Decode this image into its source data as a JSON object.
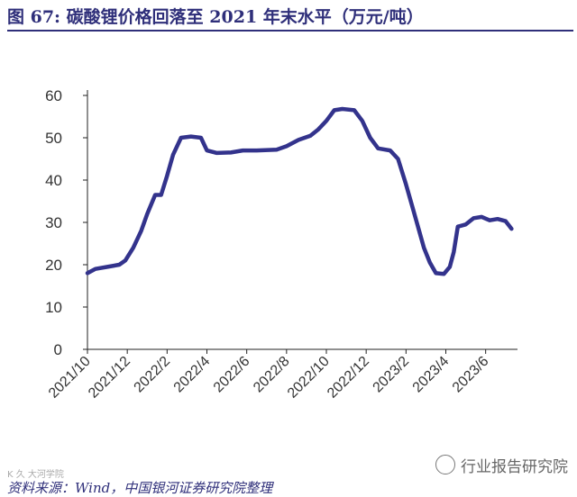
{
  "figure": {
    "title": "图 67: 碳酸锂价格回落至 2021 年末水平（万元/吨）",
    "source": "资料来源：Wind，中国银河证券研究院整理",
    "watermark": "行业报告研究院",
    "small_credit": "K 久 大河学院"
  },
  "colors": {
    "line": "#33338c",
    "title": "#2f2f7a",
    "axis": "#222222"
  },
  "chart_data": {
    "type": "line",
    "title": "",
    "xlabel": "",
    "ylabel": "",
    "ylim": [
      0,
      60
    ],
    "yticks": [
      0,
      10,
      20,
      30,
      40,
      50,
      60
    ],
    "xlim": [
      0,
      21.6
    ],
    "xticks": [
      {
        "x": 0,
        "label": "2021/10"
      },
      {
        "x": 2,
        "label": "2021/12"
      },
      {
        "x": 4,
        "label": "2022/2"
      },
      {
        "x": 6,
        "label": "2022/4"
      },
      {
        "x": 8,
        "label": "2022/6"
      },
      {
        "x": 10,
        "label": "2022/8"
      },
      {
        "x": 12,
        "label": "2022/10"
      },
      {
        "x": 14,
        "label": "2022/12"
      },
      {
        "x": 16,
        "label": "2023/2"
      },
      {
        "x": 18,
        "label": "2023/4"
      },
      {
        "x": 20,
        "label": "2023/6"
      }
    ],
    "grid": false,
    "series": [
      {
        "points": [
          [
            0,
            18
          ],
          [
            0.4,
            19
          ],
          [
            1.0,
            19.5
          ],
          [
            1.6,
            20
          ],
          [
            1.9,
            21
          ],
          [
            2.3,
            24
          ],
          [
            2.7,
            28
          ],
          [
            3.0,
            32
          ],
          [
            3.4,
            36.5
          ],
          [
            3.7,
            36.5
          ],
          [
            4.0,
            41
          ],
          [
            4.3,
            46
          ],
          [
            4.7,
            50
          ],
          [
            5.2,
            50.3
          ],
          [
            5.7,
            50
          ],
          [
            6.0,
            47
          ],
          [
            6.5,
            46.4
          ],
          [
            7.2,
            46.5
          ],
          [
            7.8,
            47
          ],
          [
            8.5,
            47
          ],
          [
            9.5,
            47.2
          ],
          [
            10.0,
            48
          ],
          [
            10.6,
            49.5
          ],
          [
            11.2,
            50.5
          ],
          [
            11.6,
            52
          ],
          [
            12.0,
            54
          ],
          [
            12.4,
            56.5
          ],
          [
            12.8,
            56.8
          ],
          [
            13.4,
            56.5
          ],
          [
            13.8,
            54
          ],
          [
            14.2,
            50
          ],
          [
            14.6,
            47.5
          ],
          [
            15.2,
            47
          ],
          [
            15.6,
            45
          ],
          [
            16.0,
            39
          ],
          [
            16.3,
            34
          ],
          [
            16.6,
            29
          ],
          [
            16.9,
            24
          ],
          [
            17.2,
            20.5
          ],
          [
            17.5,
            18
          ],
          [
            17.9,
            17.8
          ],
          [
            18.2,
            19.5
          ],
          [
            18.4,
            23
          ],
          [
            18.6,
            29
          ],
          [
            19.0,
            29.5
          ],
          [
            19.4,
            31
          ],
          [
            19.8,
            31.3
          ],
          [
            20.2,
            30.5
          ],
          [
            20.6,
            30.8
          ],
          [
            21.0,
            30.3
          ],
          [
            21.3,
            28.5
          ]
        ]
      }
    ]
  }
}
